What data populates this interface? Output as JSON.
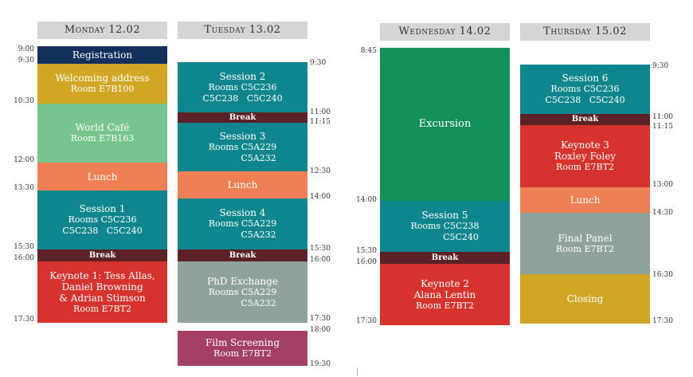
{
  "days": [
    {
      "header": "Monday 12.02",
      "blocks": [
        {
          "title": "Registration",
          "lines": []
        },
        {
          "title": "Welcoming address",
          "lines": [
            "Room E7B100"
          ]
        },
        {
          "title": "World Café",
          "lines": [
            "Room E7B163"
          ]
        },
        {
          "title": "Lunch",
          "lines": []
        },
        {
          "title": "Session 1",
          "lines": [
            "Rooms C5C236",
            "C5C238   C5C240"
          ]
        },
        {
          "title": "Break",
          "lines": []
        },
        {
          "title": "Keynote 1: Tess Allas,",
          "lines": [
            "Daniel Browning",
            "& Adrian Stimson",
            "Room E7BT2"
          ]
        }
      ],
      "times": [
        "9:00",
        "9:30",
        "10:30",
        "12:00",
        "13:30",
        "15:30",
        "16:00",
        "17:30"
      ]
    },
    {
      "header": "Tuesday 13.02",
      "blocks": [
        {
          "title": "Session 2",
          "lines": [
            "Rooms C5C236",
            "C5C238   C5C240"
          ]
        },
        {
          "title": "Break",
          "lines": []
        },
        {
          "title": "Session 3",
          "lines": [
            "Rooms C5A229",
            "C5A232"
          ]
        },
        {
          "title": "Lunch",
          "lines": []
        },
        {
          "title": "Session 4",
          "lines": [
            "Rooms C5A229",
            "C5A232"
          ]
        },
        {
          "title": "Break",
          "lines": []
        },
        {
          "title": "PhD Exchange",
          "lines": [
            "Rooms C5A229",
            "C5A232"
          ]
        },
        {
          "title": "Film Screening",
          "lines": [
            "Room E7BT2"
          ]
        }
      ],
      "times": [
        "9:30",
        "11:00",
        "11:15",
        "12:30",
        "14:00",
        "15:30",
        "16:00",
        "17:30",
        "18:00",
        "19:30"
      ]
    },
    {
      "header": "Wednesday 14.02",
      "blocks": [
        {
          "title": "Excursion",
          "lines": []
        },
        {
          "title": "Session 5",
          "lines": [
            "Rooms C5C238",
            "C5C240"
          ]
        },
        {
          "title": "Break",
          "lines": []
        },
        {
          "title": "Keynote 2",
          "lines": [
            "Alana Lentin",
            "Room E7BT2"
          ]
        }
      ],
      "times": [
        "8:45",
        "14:00",
        "15:30",
        "16:00",
        "17:30"
      ]
    },
    {
      "header": "Thursday 15.02",
      "blocks": [
        {
          "title": "Session 6",
          "lines": [
            "Rooms C5C236",
            "C5C238   C5C240"
          ]
        },
        {
          "title": "Break",
          "lines": []
        },
        {
          "title": "Keynote 3",
          "lines": [
            "Roxley Foley",
            "Room E7BT2"
          ]
        },
        {
          "title": "Lunch",
          "lines": []
        },
        {
          "title": "Final Panel",
          "lines": [
            "Room E7BT2"
          ]
        },
        {
          "title": "Closing",
          "lines": []
        }
      ],
      "times": [
        "9:30",
        "11:00",
        "11:15",
        "13:00",
        "14:30",
        "16:30",
        "17:30"
      ]
    }
  ],
  "colors": {
    "navy": "#132f5c",
    "mustard": "#d1a625",
    "mint": "#77c48e",
    "orange": "#ef8053",
    "teal": "#0f868d",
    "break": "#5b2127",
    "red": "#d6332f",
    "grey": "#8fa29b",
    "plum": "#a44066",
    "green": "#129058",
    "header": "#d5d5d5"
  }
}
